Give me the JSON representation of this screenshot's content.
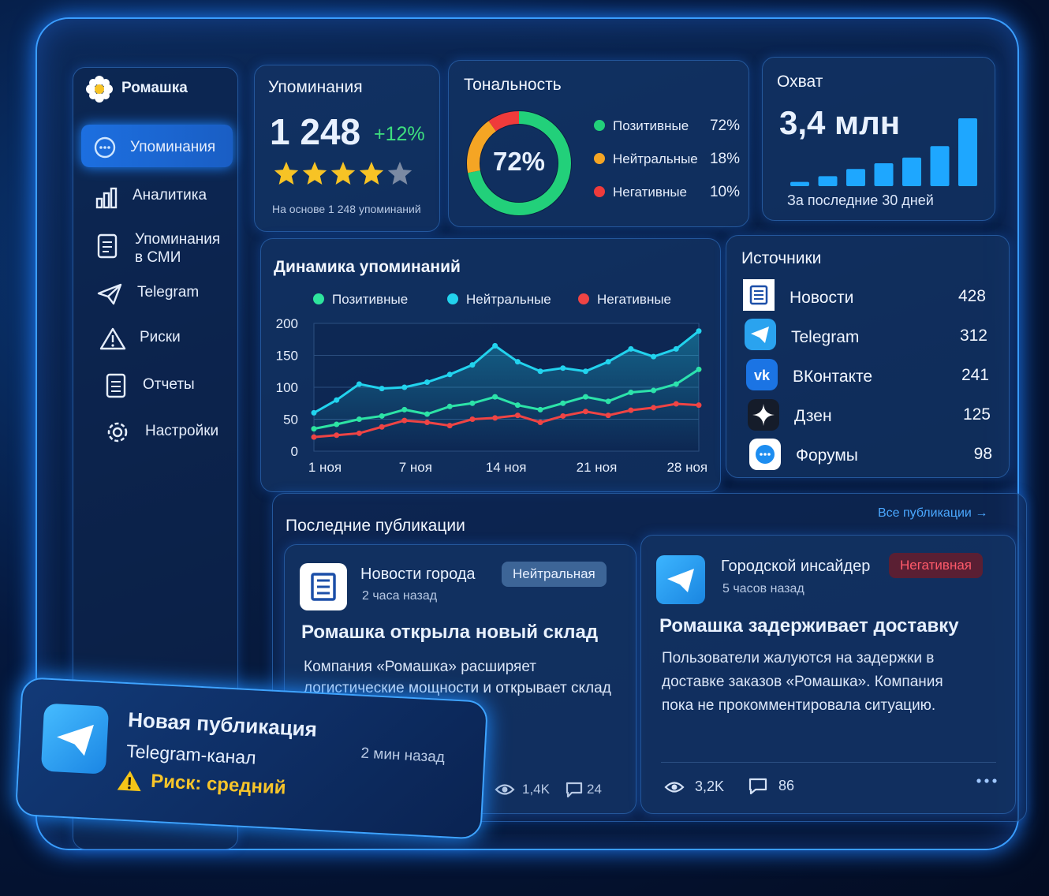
{
  "sidebar": {
    "brand": "Ромашка",
    "nav": [
      "Упоминания",
      "Аналитика",
      "Упоминания в СМИ",
      "Telegram",
      "Риски",
      "Отчеты",
      "Настройки"
    ]
  },
  "mentions": {
    "title": "Упоминания",
    "value": "1 248",
    "change": "+12%",
    "rating": 4,
    "rating_max": 5,
    "note": "На основе 1 248 упоминаний"
  },
  "tonality": {
    "title": "Тональность",
    "center_label": "72%",
    "items": [
      {
        "name": "Позитивные",
        "value": 72,
        "label": "72%",
        "color": "#22d07a"
      },
      {
        "name": "Нейтральные",
        "value": 18,
        "label": "18%",
        "color": "#f5a524"
      },
      {
        "name": "Негативные",
        "value": 10,
        "label": "10%",
        "color": "#ef3b3b"
      }
    ]
  },
  "reach": {
    "title": "Охват",
    "value": "3,4 млн",
    "bars": [
      6,
      14,
      24,
      32,
      40,
      56,
      95
    ],
    "color": "#1ea7ff",
    "note": "За последние 30 дней"
  },
  "chart_data": {
    "type": "line",
    "title": "Динамика упоминаний",
    "categories": [
      "1 ноя",
      null,
      null,
      null,
      "7 ноя",
      null,
      null,
      null,
      "14 ноя",
      null,
      null,
      null,
      "21 ноя",
      null,
      null,
      null,
      "28 ноя",
      null
    ],
    "series": [
      {
        "name": "Позитивные",
        "color": "#2ee59d",
        "values": [
          35,
          42,
          50,
          55,
          65,
          58,
          70,
          75,
          85,
          72,
          65,
          75,
          85,
          78,
          92,
          95,
          105,
          128
        ]
      },
      {
        "name": "Нейтральные",
        "color": "#22d3ee",
        "values": [
          60,
          80,
          105,
          98,
          100,
          108,
          120,
          135,
          165,
          140,
          125,
          130,
          125,
          140,
          160,
          148,
          160,
          188
        ]
      },
      {
        "name": "Негативные",
        "color": "#ef4444",
        "values": [
          22,
          25,
          28,
          38,
          48,
          45,
          40,
          50,
          52,
          56,
          45,
          55,
          62,
          56,
          64,
          68,
          74,
          72
        ]
      }
    ],
    "ylim": [
      0,
      200
    ],
    "yticks": [
      0,
      50,
      100,
      150,
      200
    ],
    "grid": true
  },
  "sources": {
    "title": "Источники",
    "items": [
      {
        "name": "Новости",
        "count": 428
      },
      {
        "name": "Telegram",
        "count": 312
      },
      {
        "name": "ВКонтакте",
        "count": 241
      },
      {
        "name": "Дзен",
        "count": 125
      },
      {
        "name": "Форумы",
        "count": 98
      }
    ]
  },
  "publications": {
    "title": "Последние публикации",
    "link": "Все публикации",
    "posts": [
      {
        "source": "Новости города",
        "time": "2 часа назад",
        "tag": "Нейтральная",
        "headline": "Ромашка открыла новый склад",
        "body": "Компания «Ромашка» расширяет логистические мощности и открывает склад в Подмосковье.",
        "views": "1,4K",
        "comments": "24"
      },
      {
        "source": "Городской инсайдер",
        "time": "5 часов назад",
        "tag": "Негативная",
        "headline": "Ромашка задерживает доставку",
        "body": "Пользователи жалуются на задержки в доставке заказов «Ромашка». Компания пока не прокомментировала ситуацию.",
        "views": "3,2K",
        "comments": "86"
      }
    ]
  },
  "toast": {
    "title": "Новая публикация",
    "channel": "Telegram-канал",
    "risk": "Риск: средний",
    "time": "2 мин назад"
  }
}
